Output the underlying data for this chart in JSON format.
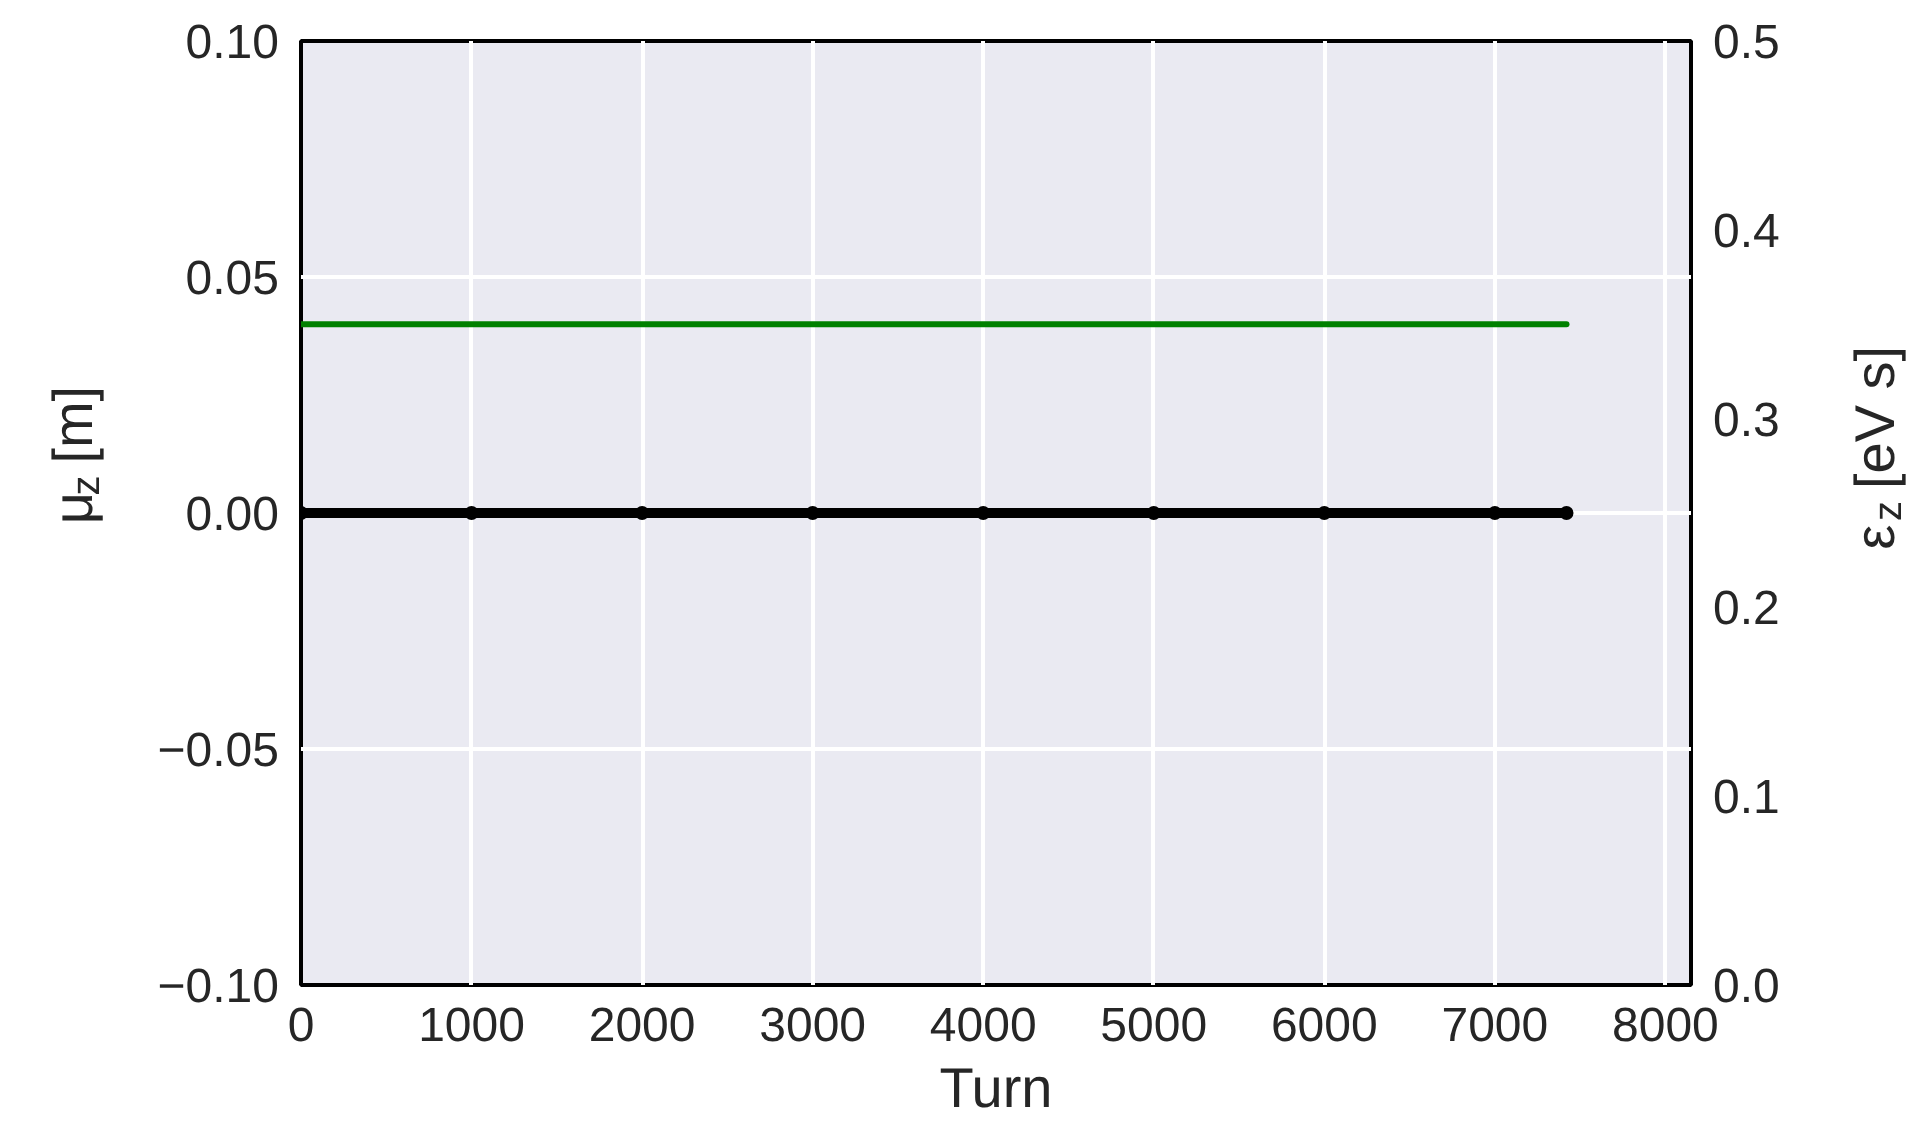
{
  "chart_data": {
    "type": "line",
    "xlabel": "Turn",
    "ylabel": "μ$_{z}$ [m]",
    "y2label": "ε$_{z}$ [eV s]",
    "xlim": [
      0,
      8150
    ],
    "xticks": [
      0,
      1000,
      2000,
      3000,
      4000,
      5000,
      6000,
      7000,
      8000
    ],
    "ylim": [
      -0.1,
      0.1
    ],
    "yticks": [
      {
        "value": -0.1,
        "label": "−0.10"
      },
      {
        "value": -0.05,
        "label": "−0.05"
      },
      {
        "value": 0,
        "label": "0.00"
      },
      {
        "value": 0.05,
        "label": "0.05"
      },
      {
        "value": 0.1,
        "label": "0.10"
      }
    ],
    "y2lim": [
      0,
      0.5
    ],
    "y2ticks": [
      {
        "value": 0,
        "label": "0.0"
      },
      0.1,
      0.2,
      0.3,
      0.4,
      0.5
    ],
    "grid": true,
    "series": [
      {
        "color": "#000000",
        "marker": "circle",
        "x": [
          0,
          1000,
          2000,
          3000,
          4000,
          5000,
          6000,
          7000,
          7420
        ],
        "values": [
          0,
          0,
          0,
          0,
          0,
          0,
          0,
          0,
          0
        ]
      },
      {
        "color": "#008000",
        "axis": "y2",
        "x": [
          0,
          7420
        ],
        "values": [
          0.35,
          0.35
        ]
      }
    ]
  }
}
